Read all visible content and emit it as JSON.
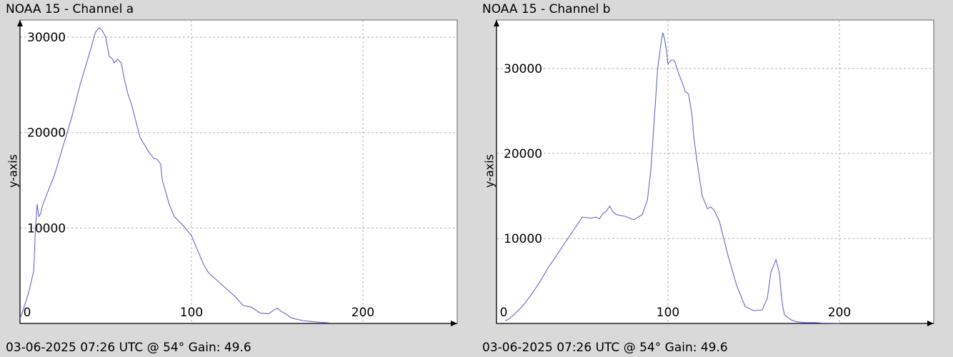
{
  "charts": [
    {
      "title": "NOAA 15 - Channel a",
      "footer": "03-06-2025 07:26 UTC @ 54° Gain: 49.6",
      "ylabel": "y-axis"
    },
    {
      "title": "NOAA 15 - Channel b",
      "footer": "03-06-2025 07:26 UTC @ 54° Gain: 49.6",
      "ylabel": "y-axis"
    }
  ],
  "colors": {
    "line": "#6666cc",
    "grid": "#b3b3b3",
    "plot_bg": "#ffffff",
    "page_bg": "#d9d9d9"
  },
  "chart_data": [
    {
      "type": "line",
      "title": "NOAA 15 - Channel a",
      "ylabel": "y-axis",
      "xlim": [
        0,
        255
      ],
      "ylim": [
        0,
        31800
      ],
      "xticks": [
        "0",
        "100",
        "200"
      ],
      "yticks": [
        "10000",
        "20000",
        "30000"
      ],
      "grid": true,
      "series": [
        {
          "x": [
            0,
            2,
            5,
            8,
            9,
            10,
            11,
            12,
            13,
            16,
            20,
            25,
            30,
            35,
            40,
            44,
            46,
            48,
            50,
            52,
            54,
            55,
            57,
            59,
            61,
            63,
            65,
            70,
            75,
            78,
            80,
            82,
            83,
            85,
            87,
            90,
            95,
            100,
            104,
            107,
            110,
            115,
            120,
            125,
            130,
            135,
            140,
            145,
            148,
            150,
            152,
            155,
            158,
            160,
            165,
            170,
            175,
            180
          ],
          "y": [
            500,
            1500,
            3200,
            5500,
            10000,
            12500,
            11200,
            11500,
            12300,
            13700,
            15500,
            18500,
            21500,
            25000,
            28000,
            30500,
            31000,
            30700,
            30000,
            28000,
            27700,
            27300,
            27700,
            27300,
            25500,
            24000,
            23000,
            19500,
            18000,
            17300,
            17200,
            16700,
            15000,
            13800,
            12500,
            11200,
            10300,
            9200,
            7500,
            6200,
            5300,
            4500,
            3700,
            2900,
            1900,
            1700,
            1100,
            1000,
            1400,
            1600,
            1300,
            1000,
            600,
            500,
            300,
            200,
            120,
            60
          ]
        }
      ]
    },
    {
      "type": "line",
      "title": "NOAA 15 - Channel b",
      "ylabel": "y-axis",
      "xlim": [
        0,
        255
      ],
      "ylim": [
        0,
        35700
      ],
      "xticks": [
        "0",
        "100",
        "200"
      ],
      "yticks": [
        "10000",
        "20000",
        "30000"
      ],
      "grid": true,
      "series": [
        {
          "x": [
            5,
            7,
            10,
            15,
            20,
            25,
            30,
            35,
            40,
            45,
            50,
            55,
            58,
            60,
            62,
            64,
            66,
            68,
            70,
            75,
            80,
            85,
            88,
            90,
            92,
            94,
            96,
            97,
            98,
            99,
            100,
            101,
            102,
            103,
            104,
            106,
            108,
            110,
            112,
            114,
            115,
            117,
            120,
            123,
            125,
            127,
            130,
            135,
            140,
            145,
            150,
            155,
            158,
            160,
            163,
            165,
            166,
            167,
            168,
            170,
            172,
            175,
            180,
            185,
            190,
            195,
            200
          ],
          "y": [
            300,
            500,
            1000,
            2000,
            3300,
            4800,
            6500,
            8000,
            9500,
            11000,
            12500,
            12400,
            12500,
            12300,
            12900,
            13200,
            13800,
            13100,
            12800,
            12600,
            12200,
            12800,
            14500,
            18000,
            24000,
            30000,
            33000,
            34200,
            33500,
            32300,
            30500,
            30800,
            31000,
            31000,
            30800,
            29500,
            28500,
            27300,
            27000,
            24500,
            22000,
            19000,
            15000,
            13500,
            13700,
            13300,
            12000,
            8000,
            4500,
            2000,
            1500,
            1600,
            3000,
            6000,
            7500,
            6000,
            3500,
            1900,
            1000,
            700,
            400,
            200,
            100,
            100,
            50,
            30,
            20
          ]
        }
      ]
    }
  ]
}
